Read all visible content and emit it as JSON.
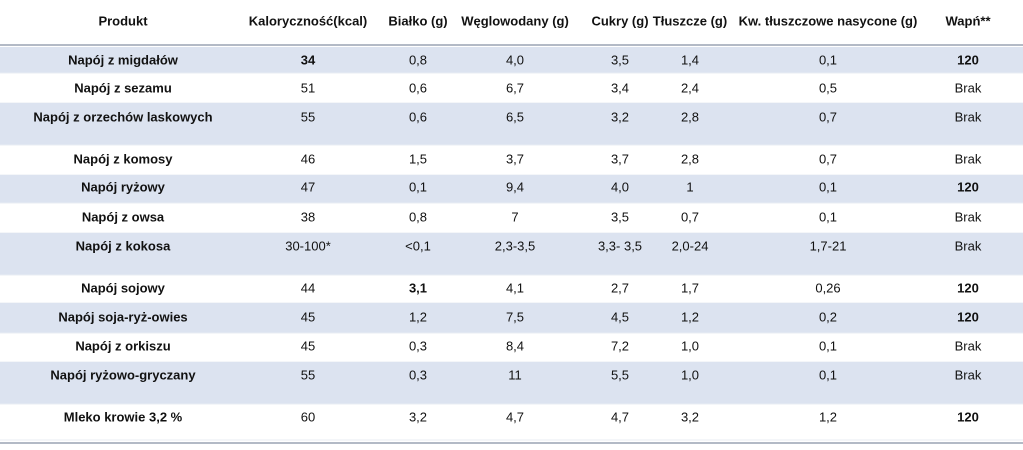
{
  "table": {
    "header": [
      "Produkt",
      "Kaloryczność(kcal)",
      "Białko (g)",
      "Węglowodany (g)",
      "Cukry (g)",
      "Tłuszcze (g)",
      "Kw. tłuszczowe nasycone (g)",
      "Wapń**"
    ],
    "rows": [
      [
        "Napój z migdałów",
        "34",
        "0,8",
        "4,0",
        "3,5",
        "1,4",
        "0,1",
        "120"
      ],
      [
        "Napój z sezamu",
        "51",
        "0,6",
        "6,7",
        "3,4",
        "2,4",
        "0,5",
        "Brak"
      ],
      [
        "Napój z orzechów laskowych",
        "55",
        "0,6",
        "6,5",
        "3,2",
        "2,8",
        "0,7",
        "Brak"
      ],
      [
        "Napój z komosy",
        "46",
        "1,5",
        "3,7",
        "3,7",
        "2,8",
        "0,7",
        "Brak"
      ],
      [
        "Napój ryżowy",
        "47",
        "0,1",
        "9,4",
        "4,0",
        "1",
        "0,1",
        "120"
      ],
      [
        "Napój z owsa",
        "38",
        "0,8",
        "7",
        "3,5",
        "0,7",
        "0,1",
        "Brak"
      ],
      [
        "Napój z kokosa",
        "30-100*",
        "<0,1",
        "2,3-3,5",
        "3,3- 3,5",
        "2,0-24",
        "1,7-21",
        "Brak"
      ],
      [
        "Napój sojowy",
        "44",
        "3,1",
        "4,1",
        "2,7",
        "1,7",
        "0,26",
        "120"
      ],
      [
        "Napój soja-ryż-owies",
        "45",
        "1,2",
        "7,5",
        "4,5",
        "1,2",
        "0,2",
        "120"
      ],
      [
        "Napój z orkiszu",
        "45",
        "0,3",
        "8,4",
        "7,2",
        "1,0",
        "0,1",
        "Brak"
      ],
      [
        "Napój ryżowo-gryczany",
        "55",
        "0,3",
        "11",
        "5,5",
        "1,0",
        "0,1",
        "Brak"
      ],
      [
        "Mleko krowie 3,2 %",
        "60",
        "3,2",
        "4,7",
        "4,7",
        "3,2",
        "1,2",
        "120"
      ]
    ]
  }
}
